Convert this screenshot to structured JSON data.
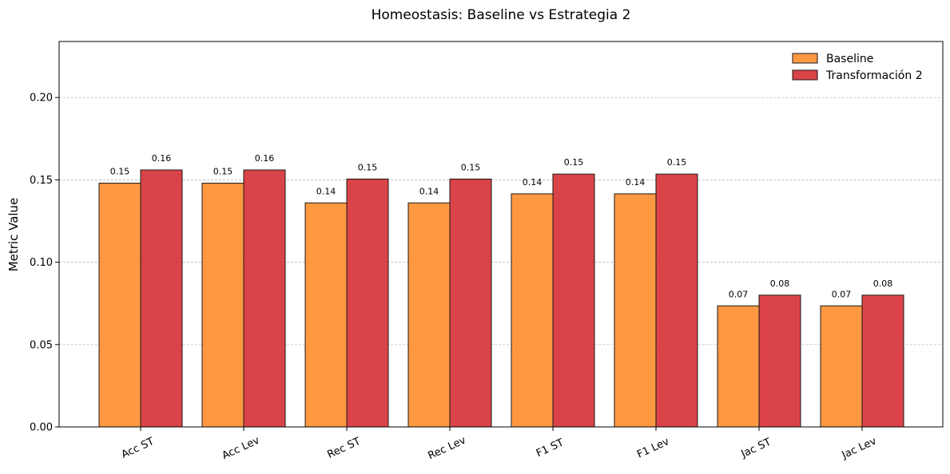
{
  "chart_data": {
    "type": "bar",
    "title": "Homeostasis: Baseline vs Estrategia 2",
    "xlabel": "",
    "ylabel": "Metric Value",
    "categories": [
      "Acc ST",
      "Acc Lev",
      "Rec ST",
      "Rec Lev",
      "F1 ST",
      "F1 Lev",
      "Jac ST",
      "Jac Lev"
    ],
    "series": [
      {
        "name": "Baseline",
        "color": "#fe8d2c",
        "values": [
          0.148,
          0.148,
          0.136,
          0.136,
          0.1415,
          0.1415,
          0.0735,
          0.0735
        ],
        "labels": [
          "0.15",
          "0.15",
          "0.14",
          "0.14",
          "0.14",
          "0.14",
          "0.07",
          "0.07"
        ]
      },
      {
        "name": "Transformación 2",
        "color": "#d62f33",
        "values": [
          0.156,
          0.156,
          0.1505,
          0.1505,
          0.1535,
          0.1535,
          0.08,
          0.08
        ],
        "labels": [
          "0.16",
          "0.16",
          "0.15",
          "0.15",
          "0.15",
          "0.15",
          "0.08",
          "0.08"
        ]
      }
    ],
    "ylim": [
      0,
      0.234
    ],
    "yticks": [
      0.0,
      0.05,
      0.1,
      0.15,
      0.2
    ],
    "ytick_labels": [
      "0.00",
      "0.05",
      "0.10",
      "0.15",
      "0.20"
    ],
    "grid": "y-dashed",
    "legend_position": "top-right"
  }
}
